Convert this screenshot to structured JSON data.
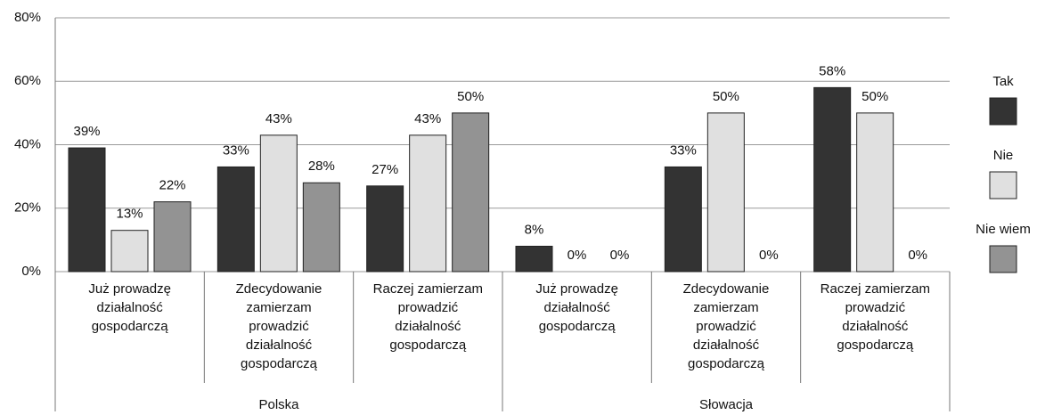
{
  "chart_data": {
    "type": "bar",
    "categories": [
      "Już prowadzę działalność gospodarczą",
      "Zdecydowanie zamierzam prowadzić działalność gospodarczą",
      "Raczej zamierzam prowadzić działalność gospodarczą",
      "Już prowadzę działalność gospodarczą",
      "Zdecydowanie zamierzam prowadzić działalność gospodarczą",
      "Raczej zamierzam prowadzić działalność gospodarczą"
    ],
    "groups": [
      "Polska",
      "Słowacja"
    ],
    "series": [
      {
        "name": "Tak",
        "color": "#333333",
        "values": [
          39,
          33,
          27,
          8,
          33,
          58
        ],
        "value_labels": [
          "39%",
          "33%",
          "27%",
          "8%",
          "33%",
          "58%"
        ]
      },
      {
        "name": "Nie",
        "color": "#e0e0e0",
        "values": [
          13,
          43,
          43,
          0,
          50,
          50
        ],
        "value_labels": [
          "13%",
          "43%",
          "43%",
          "0%",
          "50%",
          "50%"
        ]
      },
      {
        "name": "Nie wiem",
        "color": "#939393",
        "values": [
          22,
          28,
          50,
          0,
          0,
          0
        ],
        "value_labels": [
          "22%",
          "28%",
          "50%",
          "0%",
          "0%",
          "0%"
        ]
      }
    ],
    "ylim": [
      0,
      80
    ],
    "yticks": [
      {
        "value": 0,
        "label": "0%"
      },
      {
        "value": 20,
        "label": "20%"
      },
      {
        "value": 40,
        "label": "40%"
      },
      {
        "value": 60,
        "label": "60%"
      },
      {
        "value": 80,
        "label": "80%"
      }
    ],
    "grid": true,
    "legend": "right"
  }
}
